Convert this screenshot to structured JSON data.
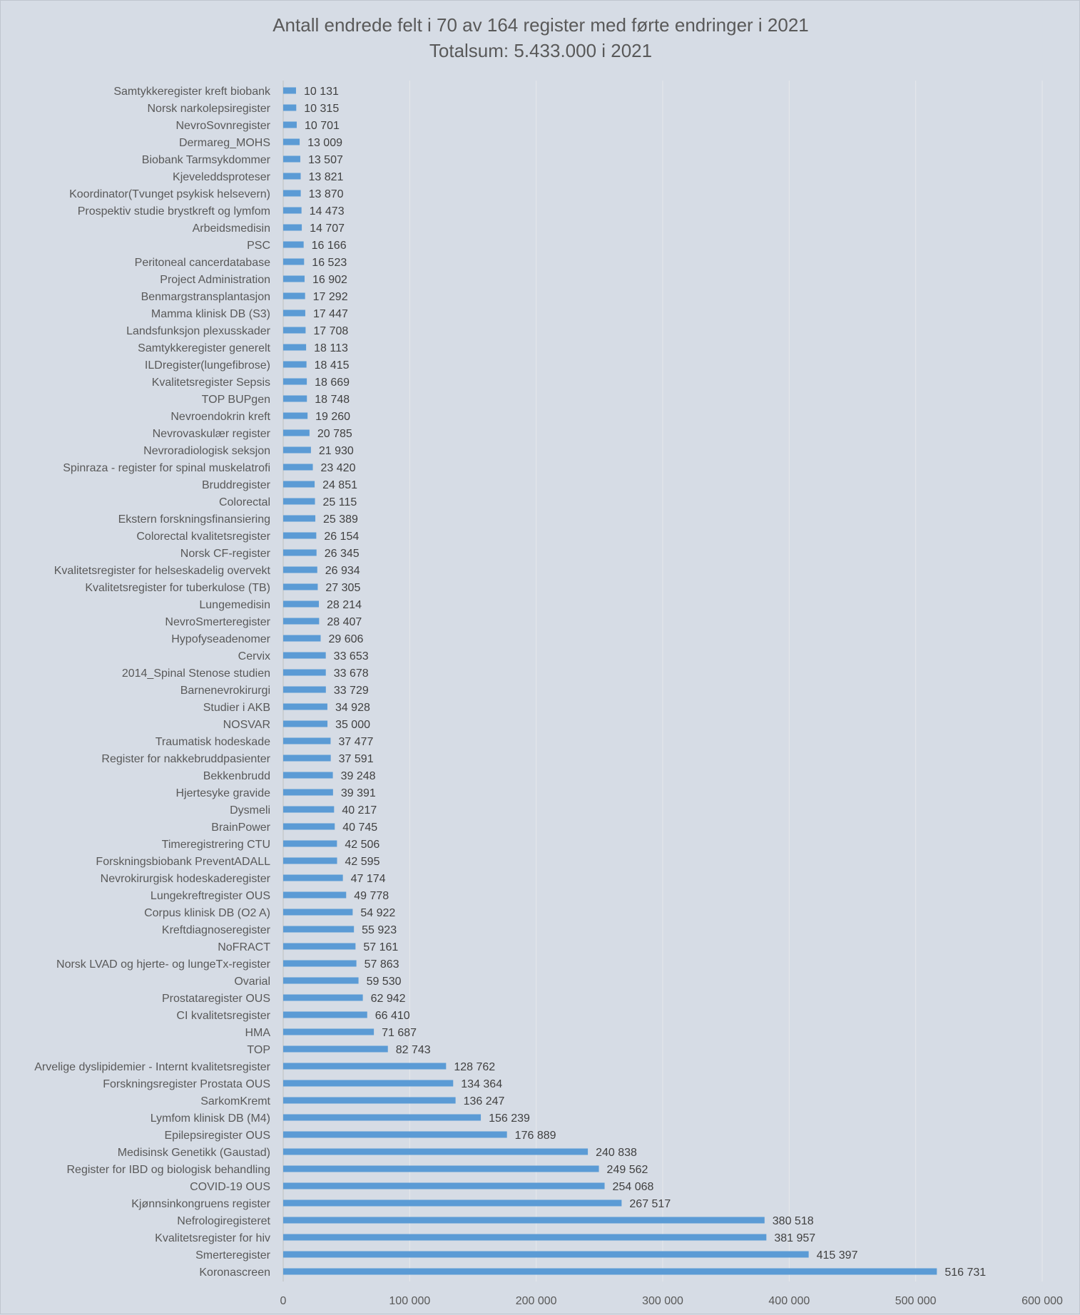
{
  "chart_data": {
    "type": "bar",
    "orientation": "horizontal",
    "title": "Antall endrede felt i 70 av 164 register med førte endringer i 2021",
    "subtitle": "Totalsum: 5.433.000 i 2021",
    "xlabel": "",
    "ylabel": "",
    "xlim": [
      0,
      600000
    ],
    "x_ticks": [
      0,
      100000,
      200000,
      300000,
      400000,
      500000,
      600000
    ],
    "x_tick_labels": [
      "0",
      "100 000",
      "200 000",
      "300 000",
      "400 000",
      "500 000",
      "600 000"
    ],
    "grid": true,
    "legend": "none",
    "bar_color": "#5b9bd5",
    "categories": [
      "Samtykkeregister kreft biobank",
      "Norsk narkolepsiregister",
      "NevroSovnregister",
      "Dermareg_MOHS",
      "Biobank Tarmsykdommer",
      "Kjeveleddsproteser",
      "Koordinator(Tvunget psykisk helsevern)",
      "Prospektiv studie brystkreft og lymfom",
      "Arbeidsmedisin",
      "PSC",
      "Peritoneal cancerdatabase",
      "Project Administration",
      "Benmargstransplantasjon",
      "Mamma klinisk DB (S3)",
      "Landsfunksjon plexusskader",
      "Samtykkeregister generelt",
      "ILDregister(lungefibrose)",
      "Kvalitetsregister Sepsis",
      "TOP BUPgen",
      "Nevroendokrin kreft",
      "Nevrovaskulær register",
      "Nevroradiologisk seksjon",
      "Spinraza - register for spinal muskelatrofi",
      "Bruddregister",
      "Colorectal",
      "Ekstern forskningsfinansiering",
      "Colorectal kvalitetsregister",
      "Norsk CF-register",
      "Kvalitetsregister for helseskadelig overvekt",
      "Kvalitetsregister for tuberkulose (TB)",
      "Lungemedisin",
      "NevroSmerteregister",
      "Hypofyseadenomer",
      "Cervix",
      "2014_Spinal Stenose studien",
      "Barnenevrokirurgi",
      "Studier i AKB",
      "NOSVAR",
      "Traumatisk hodeskade",
      "Register for nakkebruddpasienter",
      "Bekkenbrudd",
      "Hjertesyke gravide",
      "Dysmeli",
      "BrainPower",
      "Timeregistrering CTU",
      "Forskningsbiobank PreventADALL",
      "Nevrokirurgisk hodeskaderegister",
      "Lungekreftregister OUS",
      "Corpus klinisk DB (O2 A)",
      "Kreftdiagnoseregister",
      "NoFRACT",
      "Norsk LVAD og hjerte- og lungeTx-register",
      "Ovarial",
      "Prostataregister OUS",
      "CI kvalitetsregister",
      "HMA",
      "TOP",
      "Arvelige dyslipidemier - Internt kvalitetsregister",
      "Forskningsregister Prostata OUS",
      "SarkomKremt",
      "Lymfom klinisk DB (M4)",
      "Epilepsiregister OUS",
      "Medisinsk Genetikk (Gaustad)",
      "Register for IBD og biologisk behandling",
      "COVID-19 OUS",
      "Kjønnsinkongruens register",
      "Nefrologiregisteret",
      "Kvalitetsregister for hiv",
      "Smerteregister",
      "Koronascreen"
    ],
    "values": [
      10131,
      10315,
      10701,
      13009,
      13507,
      13821,
      13870,
      14473,
      14707,
      16166,
      16523,
      16902,
      17292,
      17447,
      17708,
      18113,
      18415,
      18669,
      18748,
      19260,
      20785,
      21930,
      23420,
      24851,
      25115,
      25389,
      26154,
      26345,
      26934,
      27305,
      28214,
      28407,
      29606,
      33653,
      33678,
      33729,
      34928,
      35000,
      37477,
      37591,
      39248,
      39391,
      40217,
      40745,
      42506,
      42595,
      47174,
      49778,
      54922,
      55923,
      57161,
      57863,
      59530,
      62942,
      66410,
      71687,
      82743,
      128762,
      134364,
      136247,
      156239,
      176889,
      240838,
      249562,
      254068,
      267517,
      380518,
      381957,
      415397,
      516731
    ],
    "value_labels": [
      "10 131",
      "10 315",
      "10 701",
      "13 009",
      "13 507",
      "13 821",
      "13 870",
      "14 473",
      "14 707",
      "16 166",
      "16 523",
      "16 902",
      "17 292",
      "17 447",
      "17 708",
      "18 113",
      "18 415",
      "18 669",
      "18 748",
      "19 260",
      "20 785",
      "21 930",
      "23 420",
      "24 851",
      "25 115",
      "25 389",
      "26 154",
      "26 345",
      "26 934",
      "27 305",
      "28 214",
      "28 407",
      "29 606",
      "33 653",
      "33 678",
      "33 729",
      "34 928",
      "35 000",
      "37 477",
      "37 591",
      "39 248",
      "39 391",
      "40 217",
      "40 745",
      "42 506",
      "42 595",
      "47 174",
      "49 778",
      "54 922",
      "55 923",
      "57 161",
      "57 863",
      "59 530",
      "62 942",
      "66 410",
      "71 687",
      "82 743",
      "128 762",
      "134 364",
      "136 247",
      "156 239",
      "176 889",
      "240 838",
      "249 562",
      "254 068",
      "267 517",
      "380 518",
      "381 957",
      "415 397",
      "516 731"
    ]
  }
}
